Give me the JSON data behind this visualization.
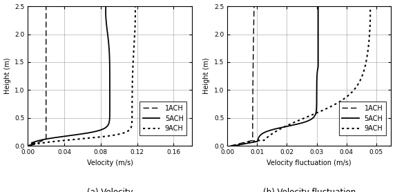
{
  "panel_a": {
    "xlabel": "Velocity (m/s)",
    "ylabel": "Height (m)",
    "xlim": [
      0.0,
      0.18
    ],
    "ylim": [
      0.0,
      2.5
    ],
    "xticks": [
      0.0,
      0.04,
      0.08,
      0.12,
      0.16
    ],
    "yticks": [
      0.0,
      0.5,
      1.0,
      1.5,
      2.0,
      2.5
    ],
    "caption": "(a) Velocity",
    "legend_loc": "center right"
  },
  "panel_b": {
    "xlabel": "Velocity fluctuation (m/s)",
    "ylabel": "Height (m)",
    "xlim": [
      0.0,
      0.055
    ],
    "ylim": [
      0.0,
      2.5
    ],
    "xticks": [
      0.0,
      0.01,
      0.02,
      0.03,
      0.04,
      0.05
    ],
    "yticks": [
      0.0,
      0.5,
      1.0,
      1.5,
      2.0,
      2.5
    ],
    "caption": "(b) Velocity fluctuation",
    "legend_loc": "center right"
  },
  "colors": {
    "line": "#000000",
    "background": "#ffffff",
    "grid": "#999999"
  },
  "font_sizes": {
    "axis_label": 7,
    "tick_label": 6.5,
    "caption": 8.5,
    "legend": 7
  }
}
